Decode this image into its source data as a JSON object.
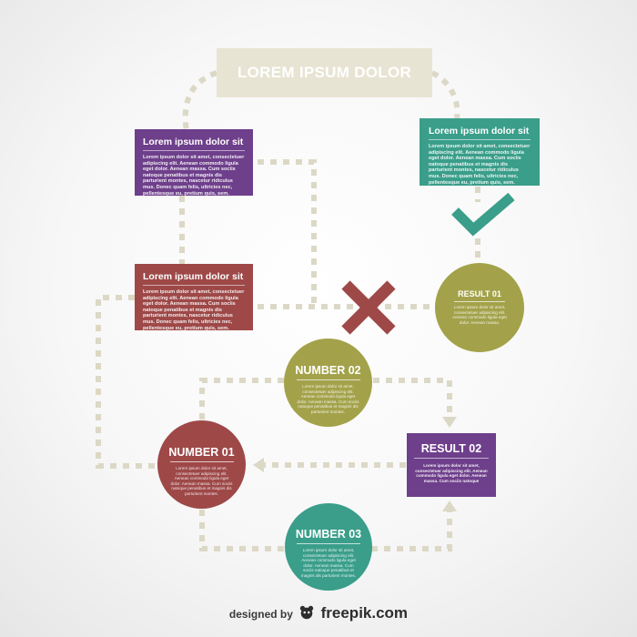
{
  "header": {
    "title": "LOREM IPSUM DOLOR"
  },
  "boxes": {
    "purple_top": {
      "title": "Lorem ipsum dolor sit",
      "body": "Lorem ipsum dolor sit amet, consectetuer adipiscing elit. Aenean commodo ligula eget dolor. Aenean massa. Cum sociis natoque penatibus et magnis dis parturient montes, nascetur ridiculus mus. Donec quam felis, ultricies nec, pellentesque eu, pretium quis, sem."
    },
    "teal_top": {
      "title": "Lorem ipsum dolor sit",
      "body": "Lorem ipsum dolor sit amet, consectetuer adipiscing elit. Aenean commodo ligula eget dolor. Aenean massa. Cum sociis natoque penatibus et magnis dis parturient montes, nascetur ridiculus mus. Donec quam felis, ultricies nec, pellentesque eu, pretium quis, sem."
    },
    "red_mid": {
      "title": "Lorem ipsum dolor sit",
      "body": "Lorem ipsum dolor sit amet, consectetuer adipiscing elit. Aenean commodo ligula eget dolor. Aenean massa. Cum sociis natoque penatibus et magnis dis parturient montes, nascetur ridiculus mus. Donec quam felis, ultricies nec, pellentesque eu, pretium quis, sem."
    },
    "result2": {
      "title": "RESULT 02",
      "body": "Lorem ipsum dolor sit amet, consectetuer adipiscing elit. Aenean commodo ligula eget dolor. Aenean massa. Cum sociis natoque"
    }
  },
  "circles": {
    "result1": {
      "title": "RESULT 01",
      "body": "Lorem ipsum dolor sit amet, consectetuer adipiscing elit. Aenean commodo ligula eget dolor. Aenean massa."
    },
    "number2": {
      "title": "NUMBER 02",
      "body": "Lorem ipsum dolor sit amet, consectetuer adipiscing elit. Aenean commodo ligula eget dolor. Aenean massa. Cum sociis natoque penatibus et magnis dis parturient montes."
    },
    "number1": {
      "title": "NUMBER 01",
      "body": "Lorem ipsum dolor sit amet, consectetuer adipiscing elit. Aenean commodo ligula eget dolor. Aenean massa. Cum sociis natoque penatibus et magnis dis parturient montes."
    },
    "number3": {
      "title": "NUMBER 03",
      "body": "Lorem ipsum dolor sit amet, consectetuer adipiscing elit. Aenean commodo ligula eget dolor. Aenean massa. Cum sociis natoque penatibus et magnis dis parturient montes."
    }
  },
  "icons": {
    "check": "check-icon",
    "cross": "cross-icon",
    "logo": "freepik-logo-icon"
  },
  "footer": {
    "prefix": "designed by",
    "brand": "freepik.com"
  },
  "colors": {
    "purple": "#6e3f8b",
    "teal": "#3a9e8a",
    "red": "#9e4848",
    "olive": "#a3a24a",
    "connector": "#dcd8c6",
    "header_bg": "#e8e4d3"
  }
}
